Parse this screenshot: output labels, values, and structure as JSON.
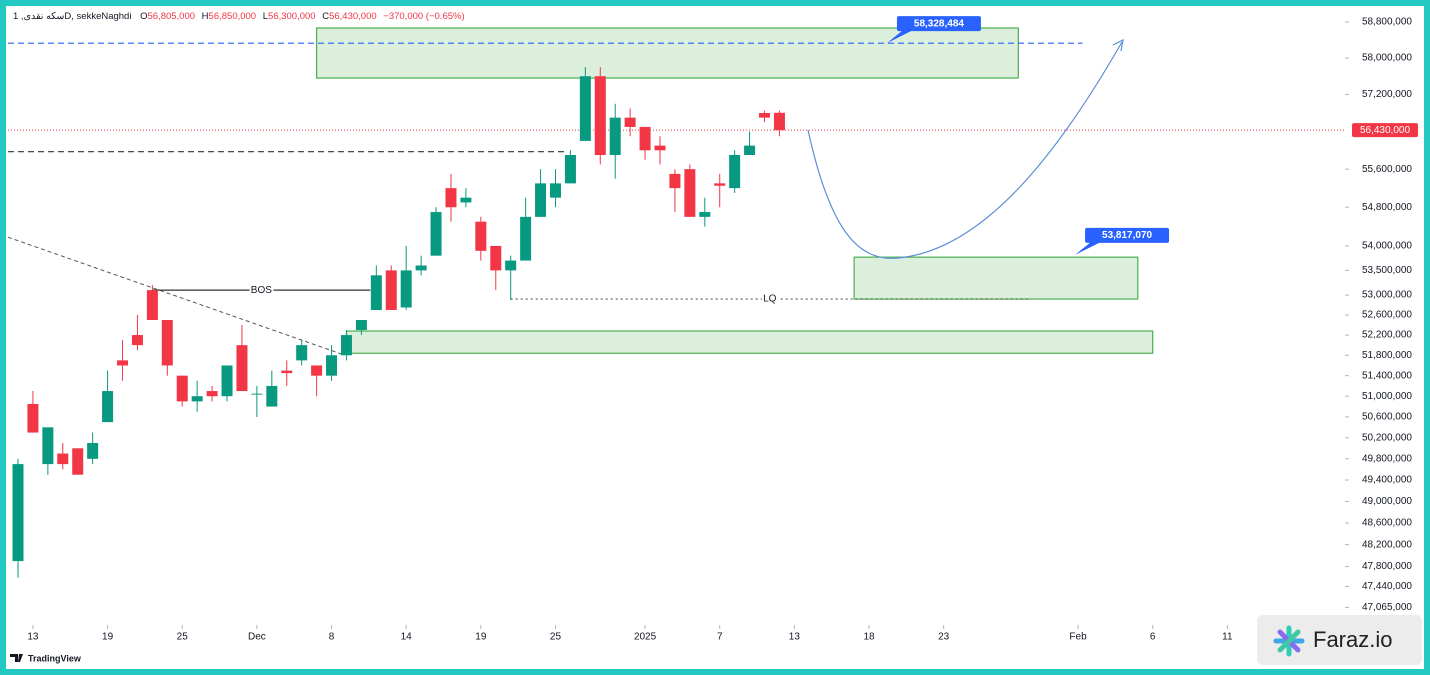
{
  "header": {
    "symbol": "سکه نقدی, 1D, sekkeNaghdi",
    "ohlc": [
      {
        "key": "O",
        "value": "56,805,000"
      },
      {
        "key": "H",
        "value": "56,850,000"
      },
      {
        "key": "L",
        "value": "56,300,000"
      },
      {
        "key": "C",
        "value": "56,430,000"
      }
    ],
    "change": "−370,000 (−0.65%)"
  },
  "footer": {
    "brand": "TradingView",
    "watermark": "Faraz.io"
  },
  "chart_data": {
    "type": "candlestick",
    "log_scale": true,
    "grid": false,
    "up_color": "#089981",
    "down_color": "#f23645",
    "open": [
      47900000,
      50850000,
      49700000,
      49900000,
      50000000,
      49800000,
      50500000,
      51700000,
      52200000,
      53100000,
      52500000,
      51400000,
      50900000,
      51100000,
      51000000,
      52000000,
      51050000,
      50800000,
      51500000,
      51700000,
      51600000,
      51400000,
      51800000,
      52300000,
      52700000,
      53500000,
      52750000,
      53500000,
      53800000,
      55200000,
      54900000,
      54500000,
      54000000,
      53500000,
      53700000,
      54600000,
      55000000,
      55300000,
      56200000,
      57600000,
      55900000,
      56700000,
      56500000,
      56100000,
      55500000,
      55600000,
      54600000,
      55300000,
      55200000,
      55900000,
      56800000,
      56805000
    ],
    "high": [
      49800000,
      51100000,
      50400000,
      50100000,
      50000000,
      50300000,
      51500000,
      52100000,
      52600000,
      53200000,
      52500000,
      51400000,
      51300000,
      51200000,
      51600000,
      52400000,
      51200000,
      51500000,
      51700000,
      52100000,
      51600000,
      52000000,
      52300000,
      52500000,
      53600000,
      53600000,
      54000000,
      53800000,
      54800000,
      55500000,
      55200000,
      54600000,
      54000000,
      53800000,
      55000000,
      55600000,
      55600000,
      56000000,
      57800000,
      57800000,
      57000000,
      56900000,
      56500000,
      56300000,
      55600000,
      55700000,
      55000000,
      55500000,
      56000000,
      56400000,
      56850000,
      56850000
    ],
    "low": [
      47600000,
      50300000,
      49500000,
      49600000,
      49500000,
      49700000,
      50500000,
      51300000,
      51900000,
      52500000,
      51400000,
      50800000,
      50700000,
      50900000,
      50900000,
      51100000,
      50600000,
      50800000,
      51200000,
      51600000,
      51000000,
      51300000,
      51700000,
      52200000,
      52700000,
      52700000,
      52700000,
      53400000,
      53800000,
      54500000,
      54800000,
      53700000,
      53100000,
      52900000,
      53700000,
      54600000,
      54800000,
      55300000,
      56200000,
      55700000,
      55400000,
      56300000,
      55800000,
      55700000,
      54700000,
      54600000,
      54400000,
      54800000,
      55100000,
      55900000,
      56600000,
      56300000
    ],
    "close": [
      49700000,
      50300000,
      50400000,
      49700000,
      49500000,
      50100000,
      51100000,
      51600000,
      52000000,
      52500000,
      51600000,
      50900000,
      51000000,
      51000000,
      51600000,
      51100000,
      51050000,
      51200000,
      51450000,
      52000000,
      51400000,
      51800000,
      52200000,
      52500000,
      53400000,
      52700000,
      53500000,
      53600000,
      54700000,
      54800000,
      55000000,
      53900000,
      53500000,
      53700000,
      54600000,
      55300000,
      55300000,
      55900000,
      57600000,
      55900000,
      56700000,
      56500000,
      56000000,
      56000000,
      55200000,
      54600000,
      54700000,
      55250000,
      55900000,
      56100000,
      56700000,
      56430000
    ],
    "xlim": [
      -0.67,
      88.88
    ],
    "xticks": [
      {
        "value": 1,
        "label": "13"
      },
      {
        "value": 6,
        "label": "19"
      },
      {
        "value": 11,
        "label": "25"
      },
      {
        "value": 16,
        "label": "Dec"
      },
      {
        "value": 21,
        "label": "8"
      },
      {
        "value": 26,
        "label": "14"
      },
      {
        "value": 31,
        "label": "19"
      },
      {
        "value": 36,
        "label": "25"
      },
      {
        "value": 42,
        "label": "2025"
      },
      {
        "value": 47,
        "label": "7"
      },
      {
        "value": 52,
        "label": "13"
      },
      {
        "value": 57,
        "label": "18"
      },
      {
        "value": 62,
        "label": "23"
      },
      {
        "value": 71,
        "label": "Feb"
      },
      {
        "value": 76,
        "label": "6"
      },
      {
        "value": 81,
        "label": "11"
      }
    ],
    "ylim": [
      46750000,
      59114000
    ],
    "yticks": [
      {
        "value": 58800000,
        "label": "58,800,000"
      },
      {
        "value": 58000000,
        "label": "58,000,000"
      },
      {
        "value": 57200000,
        "label": "57,200,000"
      },
      {
        "value": 55600000,
        "label": "55,600,000"
      },
      {
        "value": 54800000,
        "label": "54,800,000"
      },
      {
        "value": 54000000,
        "label": "54,000,000"
      },
      {
        "value": 53500000,
        "label": "53,500,000"
      },
      {
        "value": 53000000,
        "label": "53,000,000"
      },
      {
        "value": 52600000,
        "label": "52,600,000"
      },
      {
        "value": 52200000,
        "label": "52,200,000"
      },
      {
        "value": 51800000,
        "label": "51,800,000"
      },
      {
        "value": 51400000,
        "label": "51,400,000"
      },
      {
        "value": 51000000,
        "label": "51,000,000"
      },
      {
        "value": 50600000,
        "label": "50,600,000"
      },
      {
        "value": 50200000,
        "label": "50,200,000"
      },
      {
        "value": 49800000,
        "label": "49,800,000"
      },
      {
        "value": 49400000,
        "label": "49,400,000"
      },
      {
        "value": 49000000,
        "label": "49,000,000"
      },
      {
        "value": 48600000,
        "label": "48,600,000"
      },
      {
        "value": 48200000,
        "label": "48,200,000"
      },
      {
        "value": 47800000,
        "label": "47,800,000"
      },
      {
        "value": 47440000,
        "label": "47,440,000"
      },
      {
        "value": 47065000,
        "label": "47,065,000"
      }
    ],
    "last_price": {
      "value": 56430000,
      "label": "56,430,000",
      "color": "#f23645"
    },
    "zones": [
      {
        "x": [
          20,
          67
        ],
        "y": [
          57560000,
          58666000
        ]
      },
      {
        "x": [
          56,
          75
        ],
        "y": [
          52920000,
          53770000
        ]
      },
      {
        "x": [
          22,
          76
        ],
        "y": [
          51840000,
          52280000
        ]
      }
    ],
    "zone_color": "#4caf50",
    "levels": [
      {
        "value": 58328484,
        "x": [
          -0.67,
          71.3
        ],
        "style": "dashed",
        "color": "#2962ff"
      },
      {
        "value": 55970000,
        "x": [
          -0.67,
          36.7
        ],
        "style": "dashed",
        "color": "#333333"
      },
      {
        "value": 53100000,
        "x": [
          9,
          23.6
        ],
        "style": "solid",
        "color": "#333333",
        "label": "BOS"
      },
      {
        "value": 52920000,
        "x": [
          33,
          67.7
        ],
        "style": "dotted",
        "color": "#555555",
        "label": "LQ"
      }
    ],
    "trendline": {
      "x": [
        -0.67,
        21.9
      ],
      "y": [
        54180000,
        51800000
      ],
      "color": "#555555"
    },
    "price_labels": [
      {
        "x": 58.2,
        "value": 58328484,
        "label": "58,328,484"
      },
      {
        "x": 70.8,
        "value": 53817070,
        "label": "53,817,070"
      }
    ],
    "label_color": "#2962ff"
  }
}
